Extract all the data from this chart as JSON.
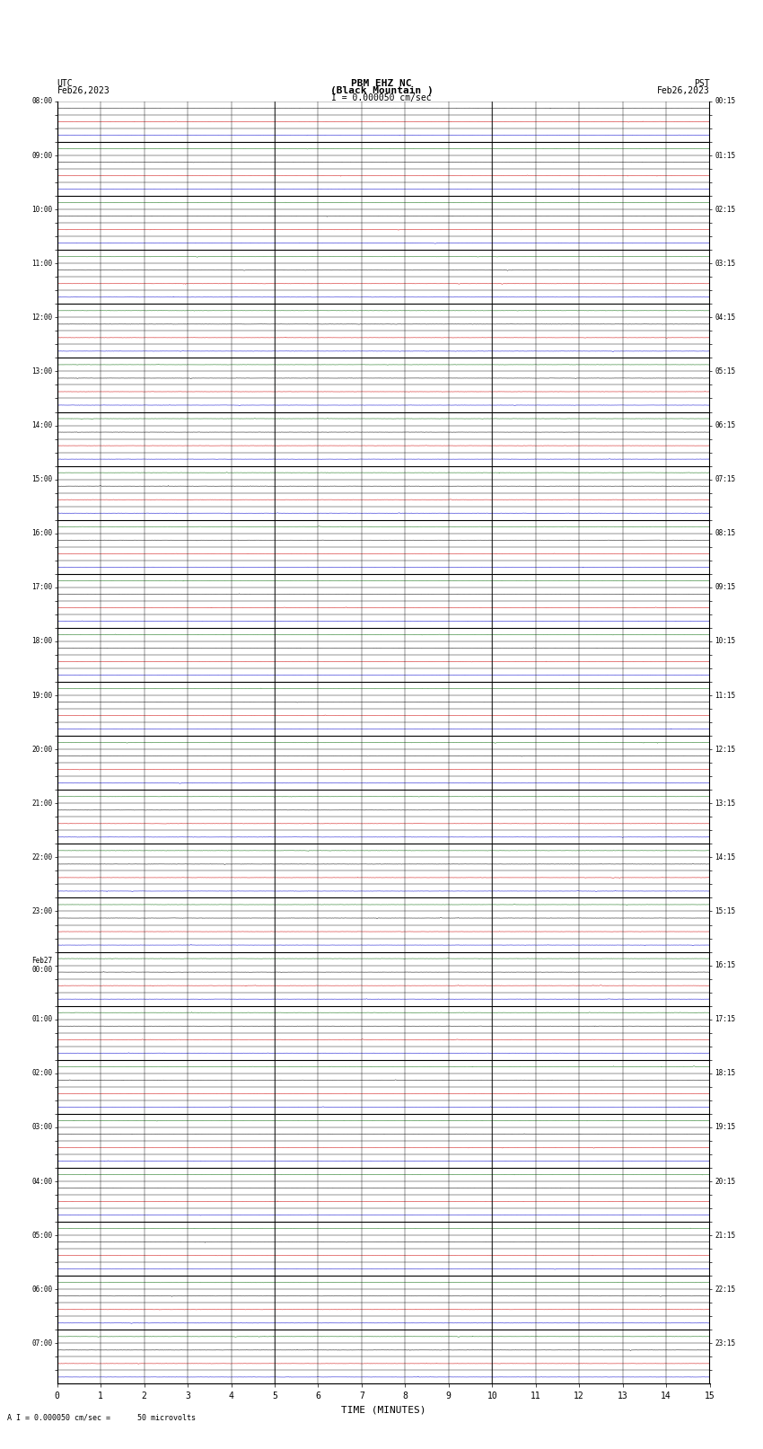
{
  "title_line1": "PBM EHZ NC",
  "title_line2": "(Black Mountain )",
  "scale_label": "I = 0.000050 cm/sec",
  "left_label_top": "UTC",
  "left_label_bot": "Feb26,2023",
  "right_label_top": "PST",
  "right_label_bot": "Feb26,2023",
  "bottom_label": "TIME (MINUTES)",
  "caption": "A I = 0.000050 cm/sec =      50 microvolts",
  "utc_times": [
    "08:00",
    "",
    "",
    "",
    "09:00",
    "",
    "",
    "",
    "10:00",
    "",
    "",
    "",
    "11:00",
    "",
    "",
    "",
    "12:00",
    "",
    "",
    "",
    "13:00",
    "",
    "",
    "",
    "14:00",
    "",
    "",
    "",
    "15:00",
    "",
    "",
    "",
    "16:00",
    "",
    "",
    "",
    "17:00",
    "",
    "",
    "",
    "18:00",
    "",
    "",
    "",
    "19:00",
    "",
    "",
    "",
    "20:00",
    "",
    "",
    "",
    "21:00",
    "",
    "",
    "",
    "22:00",
    "",
    "",
    "",
    "23:00",
    "",
    "",
    "",
    "Feb27\n00:00",
    "",
    "",
    "",
    "01:00",
    "",
    "",
    "",
    "02:00",
    "",
    "",
    "",
    "03:00",
    "",
    "",
    "",
    "04:00",
    "",
    "",
    "",
    "05:00",
    "",
    "",
    "",
    "06:00",
    "",
    "",
    "",
    "07:00",
    "",
    ""
  ],
  "pst_times": [
    "00:15",
    "",
    "",
    "",
    "01:15",
    "",
    "",
    "",
    "02:15",
    "",
    "",
    "",
    "03:15",
    "",
    "",
    "",
    "04:15",
    "",
    "",
    "",
    "05:15",
    "",
    "",
    "",
    "06:15",
    "",
    "",
    "",
    "07:15",
    "",
    "",
    "",
    "08:15",
    "",
    "",
    "",
    "09:15",
    "",
    "",
    "",
    "10:15",
    "",
    "",
    "",
    "11:15",
    "",
    "",
    "",
    "12:15",
    "",
    "",
    "",
    "13:15",
    "",
    "",
    "",
    "14:15",
    "",
    "",
    "",
    "15:15",
    "",
    "",
    "",
    "16:15",
    "",
    "",
    "",
    "17:15",
    "",
    "",
    "",
    "18:15",
    "",
    "",
    "",
    "19:15",
    "",
    "",
    "",
    "20:15",
    "",
    "",
    "",
    "21:15",
    "",
    "",
    "",
    "22:15",
    "",
    "",
    "",
    "23:15",
    "",
    ""
  ],
  "n_rows": 95,
  "n_minutes": 15,
  "x_ticks": [
    0,
    1,
    2,
    3,
    4,
    5,
    6,
    7,
    8,
    9,
    10,
    11,
    12,
    13,
    14,
    15
  ],
  "background_color": "#ffffff",
  "trace_colors_pattern": [
    "#000000",
    "#cc0000",
    "#0000cc",
    "#006600"
  ],
  "noise_amplitude": 0.004,
  "spike_amplitude": 0.04,
  "fig_width": 8.5,
  "fig_height": 16.13,
  "dpi": 100
}
